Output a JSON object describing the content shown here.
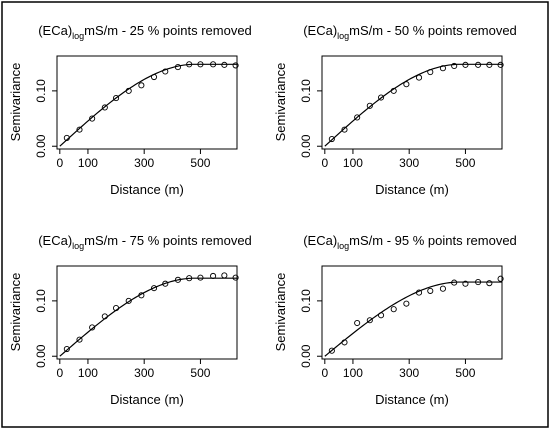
{
  "chart_data": [
    {
      "type": "scatter",
      "title_prefix": "(ECa)",
      "title_sub": "log",
      "title_suffix": "mS/m - 25 % points removed",
      "xlabel": "Distance (m)",
      "ylabel": "Semivariance",
      "xlim": [
        -10,
        630
      ],
      "ylim": [
        -0.005,
        0.163
      ],
      "xticks": [
        "0",
        "100",
        "300",
        "500"
      ],
      "xtick_values": [
        0,
        100,
        300,
        500
      ],
      "yticks": [
        "0.00",
        "0.10"
      ],
      "ytick_values": [
        0.0,
        0.1
      ],
      "grid": false,
      "model": {
        "type": "spherical",
        "nugget": 0.0,
        "sill": 0.148,
        "range": 480
      },
      "points": {
        "x": [
          25,
          70,
          115,
          160,
          200,
          245,
          290,
          335,
          375,
          420,
          460,
          500,
          545,
          585,
          625
        ],
        "y": [
          0.015,
          0.03,
          0.05,
          0.07,
          0.087,
          0.1,
          0.11,
          0.125,
          0.135,
          0.143,
          0.148,
          0.148,
          0.148,
          0.147,
          0.146
        ]
      }
    },
    {
      "type": "scatter",
      "title_prefix": "(ECa)",
      "title_sub": "log",
      "title_suffix": "mS/m - 50 % points removed",
      "xlabel": "Distance (m)",
      "ylabel": "Semivariance",
      "xlim": [
        -10,
        630
      ],
      "ylim": [
        -0.005,
        0.163
      ],
      "xticks": [
        "0",
        "100",
        "300",
        "500"
      ],
      "xtick_values": [
        0,
        100,
        300,
        500
      ],
      "yticks": [
        "0.00",
        "0.10"
      ],
      "ytick_values": [
        0.0,
        0.1
      ],
      "grid": false,
      "model": {
        "type": "spherical",
        "nugget": 0.0,
        "sill": 0.148,
        "range": 480
      },
      "points": {
        "x": [
          25,
          70,
          115,
          160,
          200,
          245,
          290,
          335,
          375,
          420,
          460,
          500,
          545,
          585,
          625
        ],
        "y": [
          0.013,
          0.03,
          0.052,
          0.073,
          0.088,
          0.1,
          0.112,
          0.124,
          0.134,
          0.141,
          0.145,
          0.147,
          0.147,
          0.147,
          0.147
        ]
      }
    },
    {
      "type": "scatter",
      "title_prefix": "(ECa)",
      "title_sub": "log",
      "title_suffix": "mS/m - 75 % points removed",
      "xlabel": "Distance (m)",
      "ylabel": "Semivariance",
      "xlim": [
        -10,
        630
      ],
      "ylim": [
        -0.005,
        0.163
      ],
      "xticks": [
        "0",
        "100",
        "300",
        "500"
      ],
      "xtick_values": [
        0,
        100,
        300,
        500
      ],
      "yticks": [
        "0.00",
        "0.10"
      ],
      "ytick_values": [
        0.0,
        0.1
      ],
      "grid": false,
      "model": {
        "type": "spherical",
        "nugget": 0.0,
        "sill": 0.141,
        "range": 480
      },
      "points": {
        "x": [
          25,
          70,
          115,
          160,
          200,
          245,
          290,
          335,
          375,
          420,
          460,
          500,
          545,
          585,
          625
        ],
        "y": [
          0.013,
          0.03,
          0.052,
          0.072,
          0.087,
          0.1,
          0.11,
          0.123,
          0.131,
          0.138,
          0.141,
          0.142,
          0.145,
          0.146,
          0.142
        ]
      }
    },
    {
      "type": "scatter",
      "title_prefix": "(ECa)",
      "title_sub": "log",
      "title_suffix": "mS/m - 95 % points removed",
      "xlabel": "Distance (m)",
      "ylabel": "Semivariance",
      "xlim": [
        -10,
        630
      ],
      "ylim": [
        -0.005,
        0.163
      ],
      "xticks": [
        "0",
        "100",
        "300",
        "500"
      ],
      "xtick_values": [
        0,
        100,
        300,
        500
      ],
      "yticks": [
        "0.00",
        "0.10"
      ],
      "ytick_values": [
        0.0,
        0.1
      ],
      "grid": false,
      "model": {
        "type": "spherical",
        "nugget": 0.0,
        "sill": 0.134,
        "range": 480
      },
      "points": {
        "x": [
          25,
          70,
          115,
          160,
          200,
          245,
          290,
          335,
          375,
          420,
          460,
          500,
          545,
          585,
          625
        ],
        "y": [
          0.01,
          0.025,
          0.06,
          0.065,
          0.074,
          0.085,
          0.095,
          0.115,
          0.118,
          0.122,
          0.133,
          0.131,
          0.134,
          0.132,
          0.14
        ]
      }
    }
  ]
}
